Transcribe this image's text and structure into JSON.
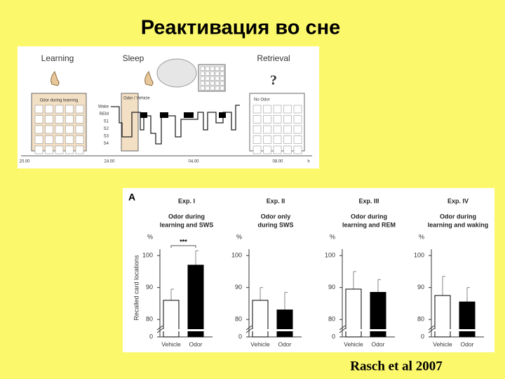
{
  "title": "Реактивация во сне",
  "diagram": {
    "phases": [
      "Learning",
      "Sleep",
      "Retrieval"
    ],
    "question": "?",
    "boxes": [
      "Odor during learning",
      "Odor / Vehicle",
      "No Odor"
    ],
    "stages": [
      "Wake",
      "REM",
      "S1",
      "S2",
      "S3",
      "S4"
    ],
    "times": [
      "20.00",
      "24.00",
      "04.00",
      "08.00",
      "h"
    ]
  },
  "panel_label": "A",
  "chart_data": [
    {
      "type": "bar",
      "title": "Exp. I",
      "subtitle": [
        "Odor during",
        "learning and SWS"
      ],
      "ylabel": "Recalled card locations",
      "y_unit": "%",
      "categories": [
        "Vehicle",
        "Odor"
      ],
      "values": [
        86,
        97
      ],
      "errors": [
        3.5,
        4.5
      ],
      "colors": [
        "#ffffff",
        "#000000"
      ],
      "ylim": [
        75,
        102
      ],
      "yticks": [
        0,
        80,
        90,
        100
      ],
      "axis_break": true,
      "annotation": "***"
    },
    {
      "type": "bar",
      "title": "Exp. II",
      "subtitle": [
        "Odor only",
        "during SWS"
      ],
      "y_unit": "%",
      "categories": [
        "Vehicle",
        "Odor"
      ],
      "values": [
        86,
        83
      ],
      "errors": [
        4,
        5.5
      ],
      "colors": [
        "#ffffff",
        "#000000"
      ],
      "ylim": [
        75,
        102
      ],
      "yticks": [
        0,
        80,
        90,
        100
      ],
      "axis_break": true
    },
    {
      "type": "bar",
      "title": "Exp. III",
      "subtitle": [
        "Odor during",
        "learning and REM"
      ],
      "y_unit": "%",
      "categories": [
        "Vehicle",
        "Odor"
      ],
      "values": [
        89.5,
        88.5
      ],
      "errors": [
        5.5,
        4
      ],
      "colors": [
        "#ffffff",
        "#000000"
      ],
      "ylim": [
        75,
        102
      ],
      "yticks": [
        0,
        80,
        90,
        100
      ],
      "axis_break": true
    },
    {
      "type": "bar",
      "title": "Exp. IV",
      "subtitle": [
        "Odor during",
        "learning and waking"
      ],
      "y_unit": "%",
      "categories": [
        "Vehicle",
        "Odor"
      ],
      "values": [
        87.5,
        85.5
      ],
      "errors": [
        6,
        4.5
      ],
      "colors": [
        "#ffffff",
        "#000000"
      ],
      "ylim": [
        75,
        102
      ],
      "yticks": [
        0,
        80,
        90,
        100
      ],
      "axis_break": true
    }
  ],
  "citation": "Rasch et al 2007"
}
